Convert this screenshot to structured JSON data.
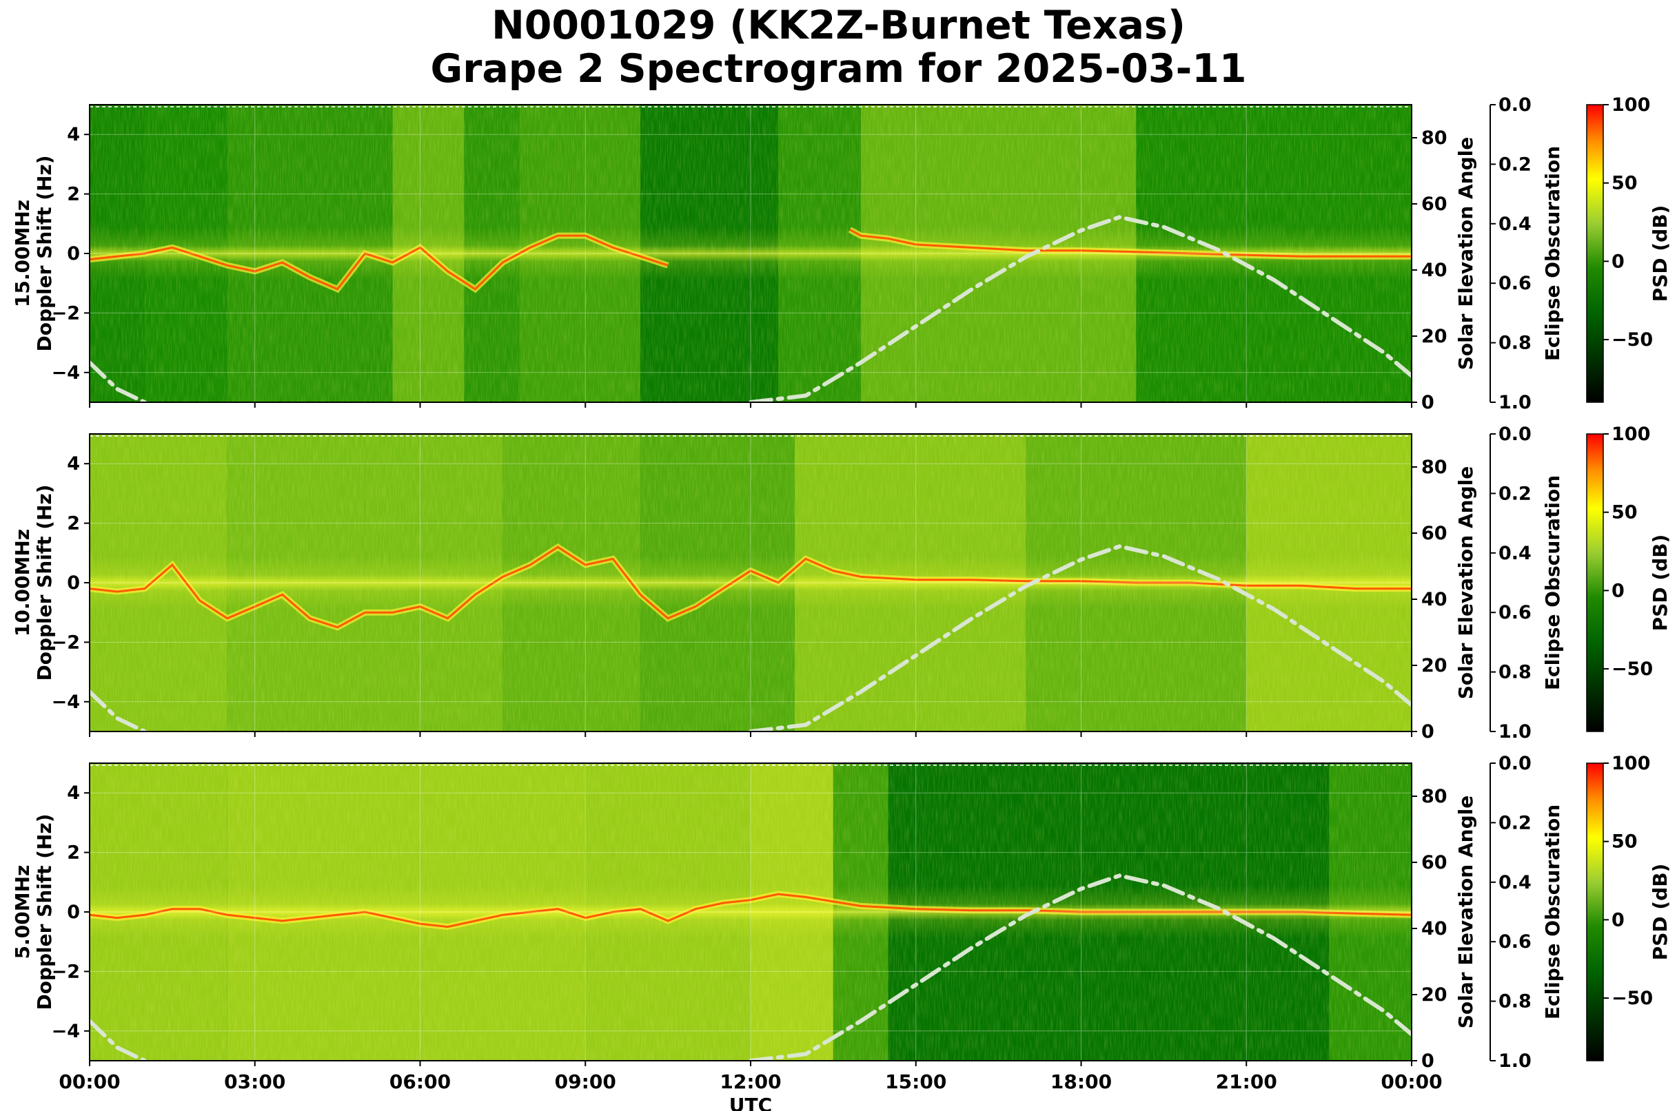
{
  "title_line1": "N0001029 (KK2Z-Burnet Texas)",
  "title_line2": "Grape 2 Spectrogram for 2025-03-11",
  "colors": {
    "cmap": [
      "#000000",
      "#006400",
      "#1f8a00",
      "#9acd32",
      "#ffff00",
      "#ff8c00",
      "#ff0000"
    ],
    "elevation_curve": "#d9e6d0",
    "background": "#ffffff",
    "grid": "#ffffff"
  },
  "chart_data": [
    {
      "type": "heatmap",
      "panel": "15.00MHz",
      "ylabel_line1": "15.00MHz",
      "ylabel_line2": "Doppler Shift (Hz)",
      "xlabel": "",
      "right_label": "Solar Elevation Angle",
      "obscuration_label": "Eclipse Obscuration",
      "colorbar_label": "PSD (dB)",
      "xlim": [
        0,
        24
      ],
      "ylim": [
        -5,
        5
      ],
      "right_ylim": [
        0,
        90
      ],
      "obscuration_lim": [
        0.0,
        1.0
      ],
      "clim": [
        -90,
        100
      ],
      "x_ticks": [
        "00:00",
        "03:00",
        "06:00",
        "09:00",
        "12:00",
        "15:00",
        "18:00",
        "21:00",
        "00:00"
      ],
      "y_ticks": [
        4,
        2,
        0,
        -2,
        -4
      ],
      "y_tick_labels": [
        "4",
        "2",
        "0",
        "−2",
        "−4"
      ],
      "right_ticks": [
        0,
        20,
        40,
        60,
        80
      ],
      "obscuration_ticks": [
        "0.0",
        "0.2",
        "0.4",
        "0.6",
        "0.8",
        "1.0"
      ],
      "colorbar_ticks": [
        100,
        50,
        0,
        -50
      ],
      "colorbar_tick_labels": [
        "100",
        "50",
        "0",
        "−50"
      ],
      "grid": true,
      "doppler_trace": [
        [
          0.0,
          -0.2
        ],
        [
          0.5,
          -0.1
        ],
        [
          1.0,
          0.0
        ],
        [
          1.5,
          0.2
        ],
        [
          2.0,
          -0.1
        ],
        [
          2.5,
          -0.4
        ],
        [
          3.0,
          -0.6
        ],
        [
          3.5,
          -0.3
        ],
        [
          4.0,
          -0.8
        ],
        [
          4.5,
          -1.2
        ],
        [
          5.0,
          0.0
        ],
        [
          5.5,
          -0.3
        ],
        [
          6.0,
          0.2
        ],
        [
          6.5,
          -0.6
        ],
        [
          7.0,
          -1.2
        ],
        [
          7.5,
          -0.3
        ],
        [
          8.0,
          0.2
        ],
        [
          8.5,
          0.6
        ],
        [
          9.0,
          0.6
        ],
        [
          9.5,
          0.2
        ],
        [
          10.0,
          -0.1
        ],
        [
          10.5,
          -0.4
        ],
        [
          13.8,
          0.8
        ],
        [
          14.0,
          0.6
        ],
        [
          14.5,
          0.5
        ],
        [
          15.0,
          0.3
        ],
        [
          16.0,
          0.2
        ],
        [
          17.0,
          0.1
        ],
        [
          18.0,
          0.1
        ],
        [
          19.0,
          0.05
        ],
        [
          20.0,
          0.0
        ],
        [
          21.0,
          -0.05
        ],
        [
          22.0,
          -0.1
        ],
        [
          23.0,
          -0.1
        ],
        [
          24.0,
          -0.1
        ]
      ],
      "doppler_trace_gaps": [
        [
          10.6,
          13.7
        ]
      ],
      "activity": [
        {
          "x0": 0.0,
          "x1": 1.0,
          "level": 0.2
        },
        {
          "x0": 1.0,
          "x1": 2.5,
          "level": 0.25
        },
        {
          "x0": 2.5,
          "x1": 5.5,
          "level": 0.3
        },
        {
          "x0": 5.5,
          "x1": 6.8,
          "level": 0.45
        },
        {
          "x0": 6.8,
          "x1": 7.8,
          "level": 0.3
        },
        {
          "x0": 7.8,
          "x1": 10.0,
          "level": 0.35
        },
        {
          "x0": 10.0,
          "x1": 12.5,
          "level": 0.1
        },
        {
          "x0": 12.5,
          "x1": 14.0,
          "level": 0.3
        },
        {
          "x0": 14.0,
          "x1": 19.0,
          "level": 0.45
        },
        {
          "x0": 19.0,
          "x1": 24.0,
          "level": 0.25
        }
      ]
    },
    {
      "type": "heatmap",
      "panel": "10.00MHz",
      "ylabel_line1": "10.00MHz",
      "ylabel_line2": "Doppler Shift (Hz)",
      "xlabel": "",
      "right_label": "Solar Elevation Angle",
      "obscuration_label": "Eclipse Obscuration",
      "colorbar_label": "PSD (dB)",
      "xlim": [
        0,
        24
      ],
      "ylim": [
        -5,
        5
      ],
      "right_ylim": [
        0,
        90
      ],
      "obscuration_lim": [
        0.0,
        1.0
      ],
      "clim": [
        -90,
        100
      ],
      "x_ticks": [
        "00:00",
        "03:00",
        "06:00",
        "09:00",
        "12:00",
        "15:00",
        "18:00",
        "21:00",
        "00:00"
      ],
      "y_ticks": [
        4,
        2,
        0,
        -2,
        -4
      ],
      "y_tick_labels": [
        "4",
        "2",
        "0",
        "−2",
        "−4"
      ],
      "right_ticks": [
        0,
        20,
        40,
        60,
        80
      ],
      "obscuration_ticks": [
        "0.0",
        "0.2",
        "0.4",
        "0.6",
        "0.8",
        "1.0"
      ],
      "colorbar_ticks": [
        100,
        50,
        0,
        -50
      ],
      "colorbar_tick_labels": [
        "100",
        "50",
        "0",
        "−50"
      ],
      "grid": true,
      "doppler_trace": [
        [
          0.0,
          -0.2
        ],
        [
          0.5,
          -0.3
        ],
        [
          1.0,
          -0.2
        ],
        [
          1.5,
          0.6
        ],
        [
          2.0,
          -0.6
        ],
        [
          2.5,
          -1.2
        ],
        [
          3.0,
          -0.8
        ],
        [
          3.5,
          -0.4
        ],
        [
          4.0,
          -1.2
        ],
        [
          4.5,
          -1.5
        ],
        [
          5.0,
          -1.0
        ],
        [
          5.5,
          -1.0
        ],
        [
          6.0,
          -0.8
        ],
        [
          6.5,
          -1.2
        ],
        [
          7.0,
          -0.4
        ],
        [
          7.5,
          0.2
        ],
        [
          8.0,
          0.6
        ],
        [
          8.5,
          1.2
        ],
        [
          9.0,
          0.6
        ],
        [
          9.5,
          0.8
        ],
        [
          10.0,
          -0.4
        ],
        [
          10.5,
          -1.2
        ],
        [
          11.0,
          -0.8
        ],
        [
          11.5,
          -0.2
        ],
        [
          12.0,
          0.4
        ],
        [
          12.5,
          0.0
        ],
        [
          13.0,
          0.8
        ],
        [
          13.5,
          0.4
        ],
        [
          14.0,
          0.2
        ],
        [
          15.0,
          0.1
        ],
        [
          16.0,
          0.1
        ],
        [
          17.0,
          0.05
        ],
        [
          18.0,
          0.05
        ],
        [
          19.0,
          0.0
        ],
        [
          20.0,
          0.0
        ],
        [
          21.0,
          -0.1
        ],
        [
          22.0,
          -0.1
        ],
        [
          23.0,
          -0.2
        ],
        [
          24.0,
          -0.2
        ]
      ],
      "doppler_trace_gaps": [],
      "activity": [
        {
          "x0": 0.0,
          "x1": 2.5,
          "level": 0.55
        },
        {
          "x0": 2.5,
          "x1": 5.0,
          "level": 0.5
        },
        {
          "x0": 5.0,
          "x1": 7.5,
          "level": 0.5
        },
        {
          "x0": 7.5,
          "x1": 10.0,
          "level": 0.45
        },
        {
          "x0": 10.0,
          "x1": 12.8,
          "level": 0.4
        },
        {
          "x0": 12.8,
          "x1": 17.0,
          "level": 0.55
        },
        {
          "x0": 17.0,
          "x1": 21.0,
          "level": 0.45
        },
        {
          "x0": 21.0,
          "x1": 24.0,
          "level": 0.6
        }
      ]
    },
    {
      "type": "heatmap",
      "panel": "5.00MHz",
      "ylabel_line1": "5.00MHz",
      "ylabel_line2": "Doppler Shift (Hz)",
      "xlabel": "UTC",
      "right_label": "Solar Elevation Angle",
      "obscuration_label": "Eclipse Obscuration",
      "colorbar_label": "PSD (dB)",
      "xlim": [
        0,
        24
      ],
      "ylim": [
        -5,
        5
      ],
      "right_ylim": [
        0,
        90
      ],
      "obscuration_lim": [
        0.0,
        1.0
      ],
      "clim": [
        -90,
        100
      ],
      "x_ticks": [
        "00:00",
        "03:00",
        "06:00",
        "09:00",
        "12:00",
        "15:00",
        "18:00",
        "21:00",
        "00:00"
      ],
      "y_ticks": [
        4,
        2,
        0,
        -2,
        -4
      ],
      "y_tick_labels": [
        "4",
        "2",
        "0",
        "−2",
        "−4"
      ],
      "right_ticks": [
        0,
        20,
        40,
        60,
        80
      ],
      "obscuration_ticks": [
        "0.0",
        "0.2",
        "0.4",
        "0.6",
        "0.8",
        "1.0"
      ],
      "colorbar_ticks": [
        100,
        50,
        0,
        -50
      ],
      "colorbar_tick_labels": [
        "100",
        "50",
        "0",
        "−50"
      ],
      "grid": true,
      "doppler_trace": [
        [
          0.0,
          -0.1
        ],
        [
          0.5,
          -0.2
        ],
        [
          1.0,
          -0.1
        ],
        [
          1.5,
          0.1
        ],
        [
          2.0,
          0.1
        ],
        [
          2.5,
          -0.1
        ],
        [
          3.0,
          -0.2
        ],
        [
          3.5,
          -0.3
        ],
        [
          4.0,
          -0.2
        ],
        [
          4.5,
          -0.1
        ],
        [
          5.0,
          0.0
        ],
        [
          5.5,
          -0.2
        ],
        [
          6.0,
          -0.4
        ],
        [
          6.5,
          -0.5
        ],
        [
          7.0,
          -0.3
        ],
        [
          7.5,
          -0.1
        ],
        [
          8.0,
          0.0
        ],
        [
          8.5,
          0.1
        ],
        [
          9.0,
          -0.2
        ],
        [
          9.5,
          0.0
        ],
        [
          10.0,
          0.1
        ],
        [
          10.5,
          -0.3
        ],
        [
          11.0,
          0.1
        ],
        [
          11.5,
          0.3
        ],
        [
          12.0,
          0.4
        ],
        [
          12.5,
          0.6
        ],
        [
          13.0,
          0.5
        ],
        [
          14.0,
          0.2
        ],
        [
          15.0,
          0.1
        ],
        [
          16.0,
          0.05
        ],
        [
          17.0,
          0.05
        ],
        [
          18.0,
          0.0
        ],
        [
          19.0,
          0.0
        ],
        [
          20.0,
          0.0
        ],
        [
          21.0,
          0.0
        ],
        [
          22.0,
          0.0
        ],
        [
          23.0,
          -0.05
        ],
        [
          24.0,
          -0.1
        ]
      ],
      "doppler_trace_gaps": [],
      "activity": [
        {
          "x0": 0.0,
          "x1": 2.5,
          "level": 0.6
        },
        {
          "x0": 2.5,
          "x1": 6.0,
          "level": 0.62
        },
        {
          "x0": 6.0,
          "x1": 9.0,
          "level": 0.62
        },
        {
          "x0": 9.0,
          "x1": 12.0,
          "level": 0.6
        },
        {
          "x0": 12.0,
          "x1": 13.5,
          "level": 0.65
        },
        {
          "x0": 13.5,
          "x1": 14.5,
          "level": 0.35
        },
        {
          "x0": 14.5,
          "x1": 22.5,
          "level": 0.05
        },
        {
          "x0": 22.5,
          "x1": 24.0,
          "level": 0.3
        }
      ]
    }
  ],
  "solar_elevation": {
    "x": [
      0.0,
      0.5,
      1.0,
      12.0,
      13.0,
      14.0,
      15.0,
      16.0,
      17.0,
      18.0,
      18.7,
      19.5,
      20.5,
      21.5,
      22.5,
      23.5,
      24.0
    ],
    "y": [
      12,
      4,
      0,
      0,
      2,
      12,
      23,
      34,
      44,
      52,
      56,
      53,
      46,
      37,
      26,
      15,
      8
    ]
  }
}
